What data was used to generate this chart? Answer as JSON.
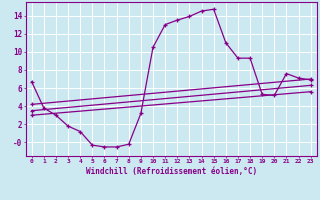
{
  "xlabel": "Windchill (Refroidissement éolien,°C)",
  "background_color": "#cce8f0",
  "grid_color": "#ffffff",
  "line_color": "#880088",
  "xlim": [
    -0.5,
    23.5
  ],
  "ylim": [
    -1.5,
    15.5
  ],
  "xticks": [
    0,
    1,
    2,
    3,
    4,
    5,
    6,
    7,
    8,
    9,
    10,
    11,
    12,
    13,
    14,
    15,
    16,
    17,
    18,
    19,
    20,
    21,
    22,
    23
  ],
  "yticks": [
    0,
    2,
    4,
    6,
    8,
    10,
    12,
    14
  ],
  "ytick_labels": [
    "-0",
    "2",
    "4",
    "6",
    "8",
    "10",
    "12",
    "14"
  ],
  "series": [
    {
      "x": [
        0,
        1,
        2,
        3,
        4,
        5,
        6,
        7,
        8,
        9,
        10,
        11,
        12,
        13,
        14,
        15,
        16,
        17,
        18,
        19,
        20,
        21,
        22,
        23
      ],
      "y": [
        6.7,
        3.8,
        3.0,
        1.8,
        1.2,
        -0.3,
        -0.5,
        -0.5,
        -0.2,
        3.2,
        10.5,
        13.0,
        13.5,
        13.9,
        14.5,
        14.7,
        11.0,
        9.3,
        9.3,
        5.3,
        5.2,
        7.6,
        7.1,
        6.9
      ]
    },
    {
      "x": [
        0,
        23
      ],
      "y": [
        4.2,
        7.0
      ]
    },
    {
      "x": [
        0,
        23
      ],
      "y": [
        3.5,
        6.3
      ]
    },
    {
      "x": [
        0,
        23
      ],
      "y": [
        3.0,
        5.6
      ]
    }
  ]
}
